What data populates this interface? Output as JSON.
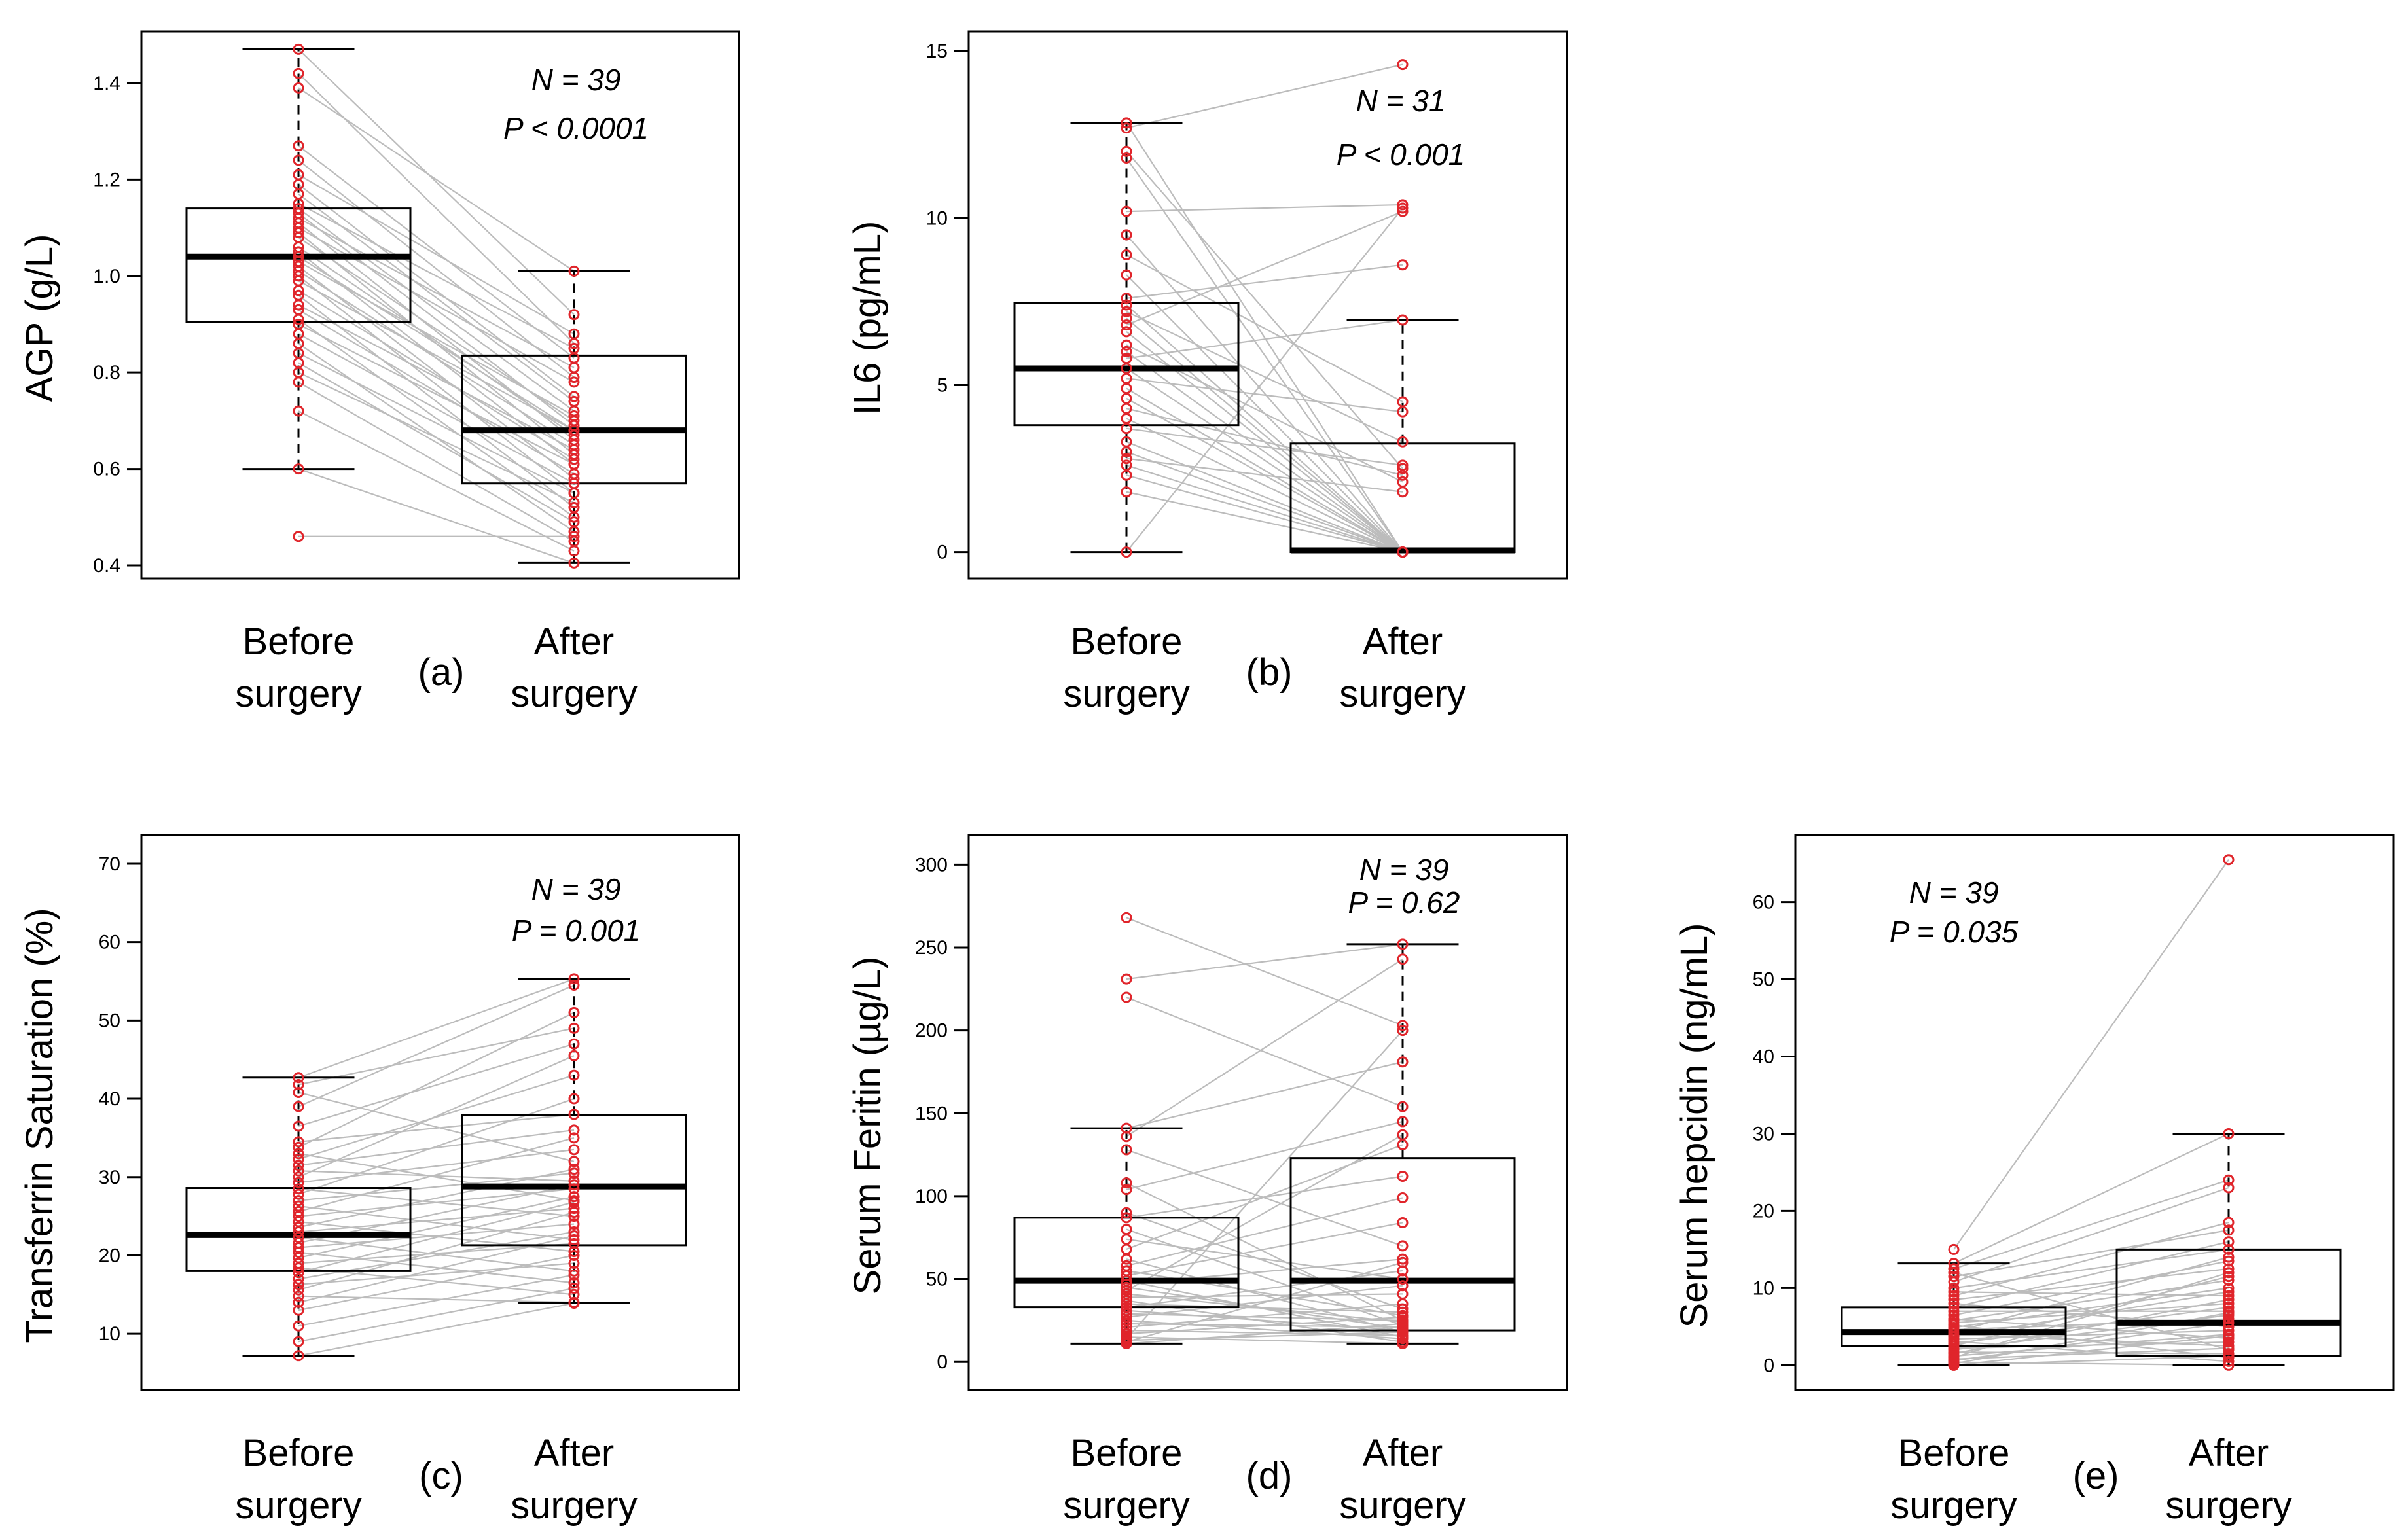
{
  "colors": {
    "paired_line": "#bcbcbc",
    "point": "#e0252b",
    "box": "#000000",
    "background": "#ffffff"
  },
  "chart_data": [
    {
      "id": "a",
      "type": "boxplot",
      "panel_label": "(a)",
      "ylabel": "AGP (g/L)",
      "ylim": [
        0.4,
        1.48
      ],
      "yticks": [
        0.4,
        0.6,
        0.8,
        1.0,
        1.2,
        1.4
      ],
      "ytick_labels": [
        "0.4",
        "0.6",
        "0.8",
        "1.0",
        "1.2",
        "1.4"
      ],
      "categories": [
        [
          "Before",
          "surgery"
        ],
        [
          "After",
          "surgery"
        ]
      ],
      "annotation": [
        "N = 39",
        "P < 0.0001"
      ],
      "annotation_position": "top-right",
      "boxes": [
        {
          "whisker_low": 0.6,
          "q1": 0.905,
          "median": 1.04,
          "q3": 1.14,
          "whisker_high": 1.47
        },
        {
          "whisker_low": 0.405,
          "q1": 0.57,
          "median": 0.68,
          "q3": 0.835,
          "whisker_high": 1.01
        }
      ],
      "pairs": [
        [
          1.47,
          0.92
        ],
        [
          1.42,
          0.86
        ],
        [
          1.39,
          1.01
        ],
        [
          1.27,
          0.83
        ],
        [
          1.24,
          0.79
        ],
        [
          1.21,
          0.88
        ],
        [
          1.19,
          0.75
        ],
        [
          1.17,
          0.74
        ],
        [
          1.15,
          0.85
        ],
        [
          1.14,
          0.72
        ],
        [
          1.13,
          0.69
        ],
        [
          1.12,
          0.81
        ],
        [
          1.11,
          0.66
        ],
        [
          1.1,
          0.78
        ],
        [
          1.09,
          0.63
        ],
        [
          1.08,
          0.7
        ],
        [
          1.06,
          0.67
        ],
        [
          1.05,
          0.61
        ],
        [
          1.04,
          0.68
        ],
        [
          1.03,
          0.71
        ],
        [
          1.02,
          0.58
        ],
        [
          1.01,
          0.65
        ],
        [
          1.0,
          0.55
        ],
        [
          0.99,
          0.68
        ],
        [
          0.97,
          0.62
        ],
        [
          0.96,
          0.52
        ],
        [
          0.94,
          0.64
        ],
        [
          0.93,
          0.59
        ],
        [
          0.91,
          0.5
        ],
        [
          0.9,
          0.61
        ],
        [
          0.88,
          0.57
        ],
        [
          0.86,
          0.47
        ],
        [
          0.84,
          0.55
        ],
        [
          0.82,
          0.49
        ],
        [
          0.8,
          0.53
        ],
        [
          0.78,
          0.45
        ],
        [
          0.72,
          0.43
        ],
        [
          0.6,
          0.405
        ],
        [
          0.46,
          0.46
        ]
      ]
    },
    {
      "id": "b",
      "type": "boxplot",
      "panel_label": "(b)",
      "ylabel": "IL6 (pg/mL)",
      "ylim": [
        -0.4,
        15.2
      ],
      "yticks": [
        0,
        5,
        10,
        15
      ],
      "ytick_labels": [
        "0",
        "5",
        "10",
        "15"
      ],
      "categories": [
        [
          "Before",
          "surgery"
        ],
        [
          "After",
          "surgery"
        ]
      ],
      "annotation": [
        "N = 31",
        "P < 0.001"
      ],
      "annotation_position": "top-right",
      "boxes": [
        {
          "whisker_low": 0.0,
          "q1": 3.8,
          "median": 5.5,
          "q3": 7.45,
          "whisker_high": 12.85
        },
        {
          "whisker_low": 0.0,
          "q1": 0.0,
          "median": 0.05,
          "q3": 3.25,
          "whisker_high": 6.95
        }
      ],
      "pairs": [
        [
          12.85,
          0.0
        ],
        [
          12.7,
          14.6
        ],
        [
          12.0,
          2.5
        ],
        [
          11.8,
          0.0
        ],
        [
          10.2,
          10.4
        ],
        [
          9.5,
          0.0
        ],
        [
          8.9,
          4.5
        ],
        [
          8.3,
          0.0
        ],
        [
          7.6,
          8.6
        ],
        [
          7.4,
          0.0
        ],
        [
          7.2,
          3.3
        ],
        [
          7.0,
          0.0
        ],
        [
          6.8,
          10.2
        ],
        [
          6.6,
          0.0
        ],
        [
          6.2,
          2.1
        ],
        [
          6.0,
          0.0
        ],
        [
          5.8,
          6.95
        ],
        [
          5.5,
          0.0
        ],
        [
          5.2,
          4.2
        ],
        [
          4.9,
          0.0
        ],
        [
          4.6,
          0.0
        ],
        [
          4.3,
          2.3
        ],
        [
          4.0,
          0.0
        ],
        [
          3.7,
          2.6
        ],
        [
          3.3,
          0.0
        ],
        [
          3.0,
          0.0
        ],
        [
          2.8,
          1.8
        ],
        [
          2.6,
          0.0
        ],
        [
          2.3,
          0.0
        ],
        [
          1.8,
          0.0
        ],
        [
          0.0,
          10.3
        ]
      ]
    },
    {
      "id": "c",
      "type": "boxplot",
      "panel_label": "(c)",
      "ylabel": "Transferrin Saturation (%)",
      "ylim": [
        4.5,
        72
      ],
      "yticks": [
        10,
        20,
        30,
        40,
        50,
        60,
        70
      ],
      "ytick_labels": [
        "10",
        "20",
        "30",
        "40",
        "50",
        "60",
        "70"
      ],
      "categories": [
        [
          "Before",
          "surgery"
        ],
        [
          "After",
          "surgery"
        ]
      ],
      "annotation": [
        "N = 39",
        "P = 0.001"
      ],
      "annotation_position": "top-right",
      "boxes": [
        {
          "whisker_low": 7.2,
          "q1": 18.0,
          "median": 22.6,
          "q3": 28.6,
          "whisker_high": 42.7
        },
        {
          "whisker_low": 13.9,
          "q1": 21.3,
          "median": 28.8,
          "q3": 37.9,
          "whisker_high": 55.3
        }
      ],
      "pairs": [
        [
          42.7,
          55.3
        ],
        [
          41.8,
          49.0
        ],
        [
          40.8,
          32.0
        ],
        [
          39.0,
          54.5
        ],
        [
          36.5,
          47.0
        ],
        [
          34.5,
          38.0
        ],
        [
          33.8,
          51.0
        ],
        [
          33.0,
          27.0
        ],
        [
          32.3,
          43.0
        ],
        [
          31.5,
          36.0
        ],
        [
          30.8,
          29.5
        ],
        [
          30.0,
          45.5
        ],
        [
          29.3,
          33.5
        ],
        [
          28.5,
          25.0
        ],
        [
          27.8,
          40.0
        ],
        [
          27.0,
          30.5
        ],
        [
          26.3,
          22.0
        ],
        [
          25.6,
          35.0
        ],
        [
          25.0,
          28.5
        ],
        [
          24.3,
          20.5
        ],
        [
          23.6,
          31.0
        ],
        [
          23.0,
          26.0
        ],
        [
          22.3,
          18.0
        ],
        [
          21.6,
          29.0
        ],
        [
          21.0,
          24.0
        ],
        [
          20.4,
          16.5
        ],
        [
          19.7,
          27.5
        ],
        [
          19.0,
          21.5
        ],
        [
          18.4,
          15.0
        ],
        [
          17.8,
          26.8
        ],
        [
          17.0,
          23.0
        ],
        [
          16.3,
          19.0
        ],
        [
          15.6,
          25.5
        ],
        [
          14.8,
          14.0
        ],
        [
          14.0,
          22.5
        ],
        [
          13.0,
          20.0
        ],
        [
          11.0,
          17.5
        ],
        [
          9.0,
          15.8
        ],
        [
          7.2,
          13.9
        ]
      ]
    },
    {
      "id": "d",
      "type": "boxplot",
      "panel_label": "(d)",
      "ylabel": "Serum Feritin (µg/L)",
      "ylim": [
        -9,
        310
      ],
      "yticks": [
        0,
        50,
        100,
        150,
        200,
        250,
        300
      ],
      "ytick_labels": [
        "0",
        "50",
        "100",
        "150",
        "200",
        "250",
        "300"
      ],
      "categories": [
        [
          "Before",
          "surgery"
        ],
        [
          "After",
          "surgery"
        ]
      ],
      "annotation": [
        "N = 39",
        "P = 0.62"
      ],
      "annotation_position": "top-right",
      "boxes": [
        {
          "whisker_low": 11.0,
          "q1": 33.0,
          "median": 49.0,
          "q3": 87.0,
          "whisker_high": 141.0
        },
        {
          "whisker_low": 11.0,
          "q1": 19.0,
          "median": 49.0,
          "q3": 123.0,
          "whisker_high": 252.0
        }
      ],
      "pairs": [
        [
          268,
          203
        ],
        [
          231,
          252
        ],
        [
          220,
          154
        ],
        [
          141,
          181
        ],
        [
          136,
          243
        ],
        [
          128,
          70
        ],
        [
          108,
          25
        ],
        [
          104,
          145
        ],
        [
          90,
          32
        ],
        [
          87,
          112
        ],
        [
          80,
          22
        ],
        [
          74,
          50
        ],
        [
          68,
          131
        ],
        [
          62,
          18
        ],
        [
          58,
          99
        ],
        [
          55,
          28
        ],
        [
          52,
          84
        ],
        [
          49,
          15
        ],
        [
          47,
          62
        ],
        [
          45,
          20
        ],
        [
          43,
          137
        ],
        [
          41,
          24
        ],
        [
          39,
          41
        ],
        [
          37,
          12
        ],
        [
          35,
          30
        ],
        [
          33,
          55
        ],
        [
          31,
          19
        ],
        [
          29,
          25
        ],
        [
          27,
          46
        ],
        [
          25,
          14
        ],
        [
          23,
          21
        ],
        [
          21,
          35
        ],
        [
          19,
          16
        ],
        [
          17,
          27
        ],
        [
          15,
          11
        ],
        [
          14,
          200
        ],
        [
          13,
          18
        ],
        [
          12,
          60
        ],
        [
          11,
          23
        ]
      ]
    },
    {
      "id": "e",
      "type": "boxplot",
      "panel_label": "(e)",
      "ylabel": "Serum hepcidin (ng/mL)",
      "ylim": [
        -1.5,
        67
      ],
      "yticks": [
        0,
        10,
        20,
        30,
        40,
        50,
        60
      ],
      "ytick_labels": [
        "0",
        "10",
        "20",
        "30",
        "40",
        "50",
        "60"
      ],
      "categories": [
        [
          "Before",
          "surgery"
        ],
        [
          "After",
          "surgery"
        ]
      ],
      "annotation": [
        "N = 39",
        "P = 0.035"
      ],
      "annotation_position": "top-left",
      "boxes": [
        {
          "whisker_low": 0.0,
          "q1": 2.5,
          "median": 4.3,
          "q3": 7.5,
          "whisker_high": 13.2
        },
        {
          "whisker_low": 0.0,
          "q1": 1.2,
          "median": 5.5,
          "q3": 15.0,
          "whisker_high": 30.0
        }
      ],
      "pairs": [
        [
          15.0,
          65.5
        ],
        [
          13.2,
          30.0
        ],
        [
          12.5,
          24.0
        ],
        [
          12.0,
          2.0
        ],
        [
          11.5,
          17.5
        ],
        [
          10.8,
          23.0
        ],
        [
          10.0,
          15.0
        ],
        [
          9.5,
          9.0
        ],
        [
          9.0,
          18.5
        ],
        [
          8.5,
          12.5
        ],
        [
          8.0,
          5.0
        ],
        [
          7.5,
          16.0
        ],
        [
          7.0,
          7.0
        ],
        [
          6.5,
          13.5
        ],
        [
          6.0,
          3.5
        ],
        [
          5.8,
          11.0
        ],
        [
          5.5,
          8.0
        ],
        [
          5.2,
          1.0
        ],
        [
          4.9,
          10.0
        ],
        [
          4.6,
          6.0
        ],
        [
          4.3,
          14.0
        ],
        [
          4.0,
          2.5
        ],
        [
          3.7,
          9.5
        ],
        [
          3.4,
          4.5
        ],
        [
          3.1,
          0.5
        ],
        [
          2.8,
          7.5
        ],
        [
          2.5,
          11.5
        ],
        [
          2.2,
          3.0
        ],
        [
          2.0,
          6.5
        ],
        [
          1.7,
          1.5
        ],
        [
          1.5,
          8.5
        ],
        [
          1.2,
          4.0
        ],
        [
          1.0,
          12.0
        ],
        [
          0.8,
          2.2
        ],
        [
          0.6,
          5.5
        ],
        [
          0.4,
          0.0
        ],
        [
          0.2,
          6.8
        ],
        [
          0.0,
          3.8
        ],
        [
          0.0,
          1.2
        ]
      ]
    }
  ]
}
